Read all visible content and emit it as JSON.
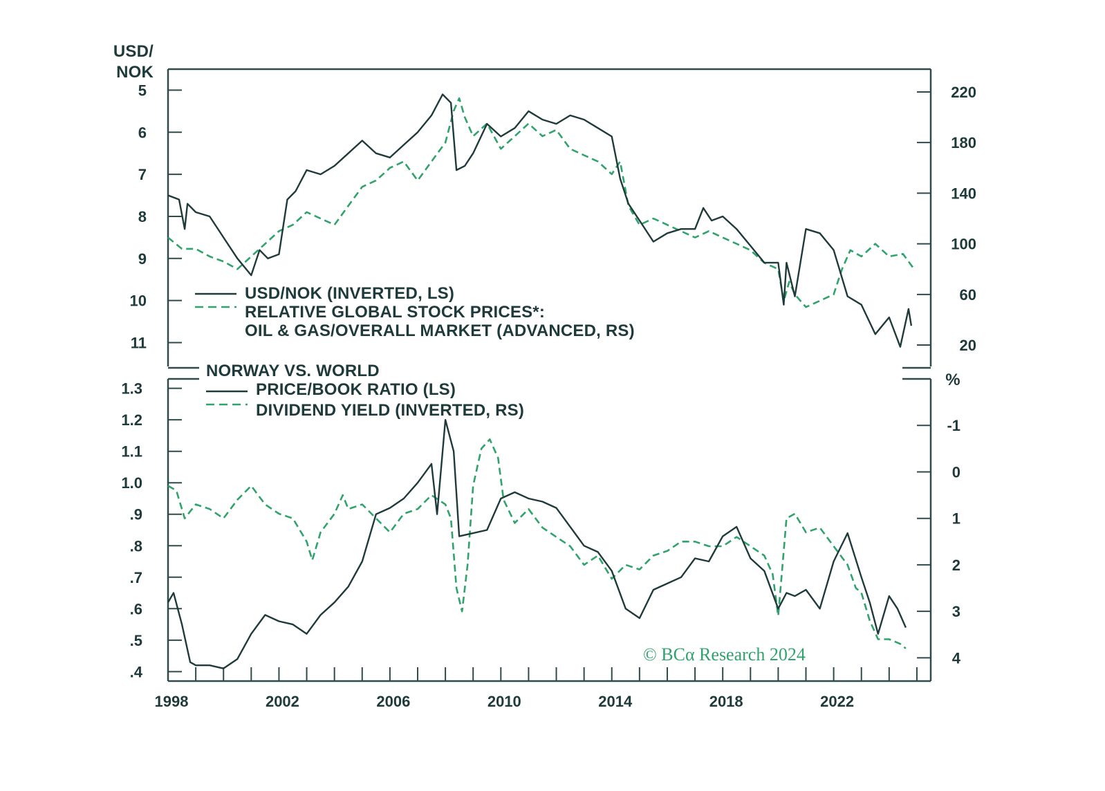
{
  "colors": {
    "dark": "#1f3a3a",
    "green": "#2fa36b",
    "frame": "#2e4a4a"
  },
  "watermark": "© BCα Research 2024",
  "top_axis_title": "USD/\nNOK",
  "bottom_pct_label": "%",
  "x_tick_labels": [
    "1998",
    "2002",
    "2006",
    "2010",
    "2014",
    "2018",
    "2022"
  ],
  "chart_data": [
    {
      "type": "line",
      "panel": "top",
      "legend": [
        "USD/NOK (INVERTED, LS)",
        "RELATIVE GLOBAL STOCK PRICES*:",
        "OIL & GAS/OVERALL MARKET (ADVANCED, RS)"
      ],
      "left_axis": {
        "label": "USD/NOK",
        "inverted": true,
        "range": [
          4.5,
          11.6
        ],
        "ticks": [
          5,
          6,
          7,
          8,
          9,
          10,
          11
        ]
      },
      "right_axis": {
        "range": [
          2,
          238
        ],
        "ticks": [
          20,
          60,
          100,
          140,
          180,
          220
        ]
      },
      "x_range": [
        1998,
        2025.5
      ],
      "series": [
        {
          "name": "USD/NOK (INVERTED, LS)",
          "axis": "left",
          "style": "solid",
          "x": [
            1998.0,
            1998.4,
            1998.6,
            1998.7,
            1999.0,
            1999.5,
            2000.0,
            2000.5,
            2001.0,
            2001.3,
            2001.6,
            2002.0,
            2002.3,
            2002.6,
            2003.0,
            2003.5,
            2004.0,
            2004.5,
            2005.0,
            2005.5,
            2006.0,
            2006.5,
            2007.0,
            2007.5,
            2007.9,
            2008.2,
            2008.4,
            2008.7,
            2009.0,
            2009.5,
            2010.0,
            2010.5,
            2011.0,
            2011.5,
            2012.0,
            2012.5,
            2013.0,
            2013.5,
            2014.0,
            2014.3,
            2014.6,
            2015.0,
            2015.5,
            2016.0,
            2016.5,
            2017.0,
            2017.3,
            2017.6,
            2018.0,
            2018.5,
            2019.0,
            2019.5,
            2020.0,
            2020.2,
            2020.3,
            2020.6,
            2021.0,
            2021.5,
            2022.0,
            2022.5,
            2023.0,
            2023.5,
            2024.0,
            2024.4,
            2024.7,
            2024.8
          ],
          "values": [
            7.5,
            7.6,
            8.3,
            7.7,
            7.9,
            8.0,
            8.5,
            9.0,
            9.4,
            8.8,
            9.0,
            8.9,
            7.6,
            7.4,
            6.9,
            7.0,
            6.8,
            6.5,
            6.2,
            6.5,
            6.6,
            6.3,
            6.0,
            5.6,
            5.1,
            5.3,
            6.9,
            6.8,
            6.5,
            5.8,
            6.1,
            5.9,
            5.5,
            5.7,
            5.8,
            5.6,
            5.7,
            5.9,
            6.1,
            7.1,
            7.7,
            8.1,
            8.6,
            8.4,
            8.3,
            8.3,
            7.8,
            8.1,
            8.0,
            8.3,
            8.7,
            9.1,
            9.1,
            10.1,
            9.1,
            9.9,
            8.3,
            8.4,
            8.8,
            9.9,
            10.1,
            10.8,
            10.4,
            11.1,
            10.2,
            10.6
          ]
        },
        {
          "name": "RELATIVE GLOBAL STOCK PRICES*: OIL & GAS/OVERALL MARKET (ADVANCED, RS)",
          "axis": "right",
          "style": "dashed",
          "x": [
            1998.0,
            1998.5,
            1999.0,
            1999.5,
            2000.0,
            2000.5,
            2001.0,
            2001.5,
            2002.0,
            2002.5,
            2003.0,
            2003.5,
            2004.0,
            2004.5,
            2005.0,
            2005.5,
            2006.0,
            2006.5,
            2007.0,
            2007.5,
            2008.0,
            2008.3,
            2008.5,
            2008.7,
            2009.0,
            2009.5,
            2010.0,
            2010.5,
            2011.0,
            2011.5,
            2012.0,
            2012.5,
            2013.0,
            2013.5,
            2014.0,
            2014.3,
            2014.6,
            2015.0,
            2015.5,
            2016.0,
            2016.5,
            2017.0,
            2017.5,
            2018.0,
            2018.5,
            2019.0,
            2019.5,
            2020.0,
            2020.2,
            2020.4,
            2020.6,
            2021.0,
            2021.5,
            2022.0,
            2022.3,
            2022.6,
            2023.0,
            2023.5,
            2024.0,
            2024.5,
            2024.9
          ],
          "values": [
            105,
            96,
            96,
            90,
            86,
            80,
            90,
            100,
            110,
            115,
            125,
            120,
            115,
            130,
            145,
            150,
            160,
            165,
            150,
            165,
            180,
            205,
            215,
            200,
            185,
            195,
            175,
            185,
            195,
            185,
            190,
            175,
            170,
            165,
            155,
            165,
            130,
            115,
            120,
            115,
            110,
            105,
            110,
            105,
            100,
            95,
            85,
            80,
            55,
            70,
            60,
            50,
            55,
            60,
            80,
            95,
            90,
            100,
            90,
            92,
            80
          ]
        }
      ]
    },
    {
      "type": "line",
      "panel": "bottom",
      "title": "NORWAY VS. WORLD",
      "legend": [
        "PRICE/BOOK RATIO (LS)",
        "DIVIDEND YIELD (INVERTED, RS)"
      ],
      "left_axis": {
        "range": [
          0.37,
          1.33
        ],
        "tick_values": [
          0.4,
          0.5,
          0.6,
          0.7,
          0.8,
          0.9,
          1.0,
          1.1,
          1.2,
          1.3
        ],
        "tick_labels": [
          ".4",
          ".5",
          ".6",
          ".7",
          ".8",
          ".9",
          "1.0",
          "1.1",
          "1.2",
          "1.3"
        ]
      },
      "right_axis": {
        "label": "%",
        "inverted": true,
        "range": [
          -2,
          4.5
        ],
        "tick_values": [
          -1,
          0,
          1,
          2,
          3,
          4
        ],
        "tick_labels": [
          "-1",
          "0",
          "1",
          "2",
          "3",
          "4"
        ]
      },
      "x_range": [
        1998,
        2025.5
      ],
      "series": [
        {
          "name": "PRICE/BOOK RATIO (LS)",
          "axis": "left",
          "style": "solid",
          "x": [
            1998.0,
            1998.2,
            1998.5,
            1998.8,
            1999.0,
            1999.5,
            2000.0,
            2000.5,
            2001.0,
            2001.5,
            2002.0,
            2002.5,
            2003.0,
            2003.5,
            2004.0,
            2004.5,
            2005.0,
            2005.5,
            2006.0,
            2006.5,
            2007.0,
            2007.5,
            2007.7,
            2008.0,
            2008.3,
            2008.5,
            2009.0,
            2009.5,
            2010.0,
            2010.5,
            2011.0,
            2011.5,
            2012.0,
            2012.5,
            2013.0,
            2013.5,
            2014.0,
            2014.5,
            2015.0,
            2015.5,
            2016.0,
            2016.5,
            2017.0,
            2017.5,
            2018.0,
            2018.5,
            2019.0,
            2019.5,
            2020.0,
            2020.3,
            2020.6,
            2021.0,
            2021.5,
            2022.0,
            2022.5,
            2023.0,
            2023.3,
            2023.6,
            2024.0,
            2024.3,
            2024.6
          ],
          "values": [
            0.62,
            0.65,
            0.55,
            0.43,
            0.42,
            0.42,
            0.41,
            0.44,
            0.52,
            0.58,
            0.56,
            0.55,
            0.52,
            0.58,
            0.62,
            0.67,
            0.75,
            0.9,
            0.92,
            0.95,
            1.0,
            1.06,
            0.9,
            1.2,
            1.1,
            0.83,
            0.84,
            0.85,
            0.95,
            0.97,
            0.95,
            0.94,
            0.92,
            0.86,
            0.8,
            0.78,
            0.72,
            0.6,
            0.57,
            0.66,
            0.68,
            0.7,
            0.76,
            0.75,
            0.83,
            0.86,
            0.76,
            0.72,
            0.6,
            0.65,
            0.64,
            0.66,
            0.6,
            0.75,
            0.84,
            0.7,
            0.62,
            0.52,
            0.64,
            0.6,
            0.54
          ]
        },
        {
          "name": "DIVIDEND YIELD (INVERTED, RS)",
          "axis": "right",
          "style": "dashed",
          "x": [
            1998.0,
            1998.3,
            1998.6,
            1999.0,
            1999.5,
            2000.0,
            2000.5,
            2001.0,
            2001.5,
            2002.0,
            2002.5,
            2003.0,
            2003.2,
            2003.5,
            2004.0,
            2004.3,
            2004.5,
            2005.0,
            2005.5,
            2006.0,
            2006.5,
            2007.0,
            2007.5,
            2008.0,
            2008.2,
            2008.4,
            2008.6,
            2008.8,
            2009.0,
            2009.3,
            2009.6,
            2009.9,
            2010.1,
            2010.5,
            2011.0,
            2011.5,
            2012.0,
            2012.5,
            2013.0,
            2013.5,
            2014.0,
            2014.5,
            2015.0,
            2015.5,
            2016.0,
            2016.5,
            2017.0,
            2017.5,
            2018.0,
            2018.5,
            2019.0,
            2019.5,
            2019.8,
            2020.0,
            2020.3,
            2020.6,
            2021.0,
            2021.5,
            2022.0,
            2022.5,
            2022.8,
            2023.0,
            2023.3,
            2023.6,
            2024.0,
            2024.4,
            2024.6
          ],
          "values": [
            0.3,
            0.4,
            1.0,
            0.7,
            0.8,
            1.0,
            0.6,
            0.3,
            0.7,
            0.9,
            1.0,
            1.5,
            1.9,
            1.3,
            0.9,
            0.5,
            0.8,
            0.7,
            1.0,
            1.3,
            0.9,
            0.8,
            0.5,
            0.7,
            1.0,
            2.5,
            3.0,
            2.0,
            0.3,
            -0.5,
            -0.7,
            -0.3,
            0.6,
            1.1,
            0.8,
            1.2,
            1.4,
            1.6,
            2.0,
            1.8,
            2.3,
            2.0,
            2.1,
            1.8,
            1.7,
            1.5,
            1.5,
            1.6,
            1.6,
            1.4,
            1.6,
            1.8,
            2.2,
            3.1,
            1.0,
            0.9,
            1.3,
            1.2,
            1.6,
            2.0,
            2.5,
            2.6,
            3.2,
            3.6,
            3.6,
            3.7,
            3.8
          ]
        }
      ]
    }
  ]
}
